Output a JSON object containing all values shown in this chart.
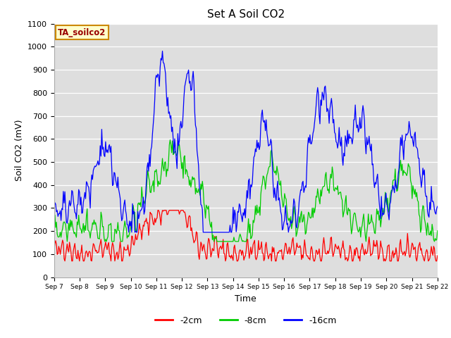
{
  "title": "Set A Soil CO2",
  "xlabel": "Time",
  "ylabel": "Soil CO2 (mV)",
  "ylim": [
    0,
    1100
  ],
  "yticks": [
    0,
    100,
    200,
    300,
    400,
    500,
    600,
    700,
    800,
    900,
    1000,
    1100
  ],
  "fig_bg": "#ffffff",
  "plot_bg": "#dedede",
  "line_color_2cm": "#ff0000",
  "line_color_8cm": "#00cc00",
  "line_color_16cm": "#0000ff",
  "legend_labels": [
    "-2cm",
    "-8cm",
    "-16cm"
  ],
  "annotation_text": "TA_soilco2",
  "annotation_bg": "#ffffcc",
  "annotation_border": "#cc8800",
  "n_points": 500,
  "title_fontsize": 11
}
